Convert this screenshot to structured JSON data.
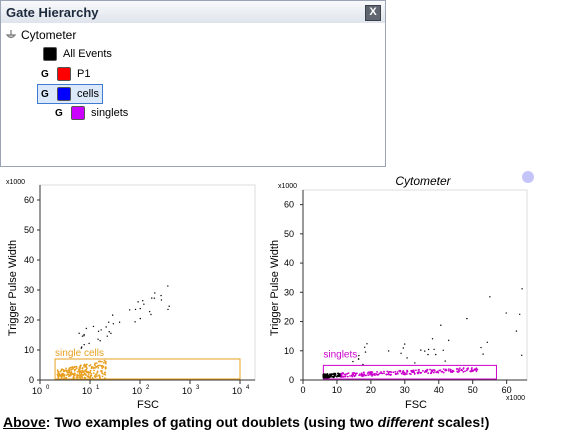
{
  "panel": {
    "title": "Gate Hierarchy",
    "close_glyph": "X",
    "root_label": "Cytometer",
    "items": [
      {
        "prefix": "",
        "label": "All Events",
        "color": "#000000"
      },
      {
        "prefix": "G",
        "label": "P1",
        "color": "#ff0000"
      },
      {
        "prefix": "G",
        "label": "cells",
        "color": "#0000ff",
        "selected": true
      },
      {
        "prefix": "G",
        "label": "singlets",
        "color": "#cc00ff"
      }
    ]
  },
  "chart_data": [
    {
      "type": "scatter",
      "title": "",
      "xlabel": "FSC",
      "ylabel": "Trigger Pulse Width",
      "y_multiplier": "x1000",
      "x_scale": "log",
      "x_ticks": [
        "10^0",
        "10^1",
        "10^2",
        "10^3",
        "10^4"
      ],
      "y_ticks": [
        "0",
        "10",
        "20",
        "30",
        "40",
        "50",
        "60"
      ],
      "ylim": [
        0,
        65
      ],
      "gate": {
        "label": "single cells",
        "color": "#e8a020",
        "x_range": [
          2,
          10000
        ],
        "y_range": [
          0,
          7
        ]
      },
      "points_color": [
        "#000000",
        "#e8a020"
      ]
    },
    {
      "type": "scatter",
      "title": "Cytometer",
      "xlabel": "FSC",
      "ylabel": "Trigger Pulse Width",
      "y_multiplier": "x1000",
      "x_multiplier": "x1000",
      "x_scale": "linear",
      "x_ticks": [
        "0",
        "10",
        "20",
        "30",
        "40",
        "50",
        "60"
      ],
      "y_ticks": [
        "0",
        "10",
        "20",
        "30",
        "40",
        "50",
        "60"
      ],
      "ylim": [
        0,
        65
      ],
      "xlim": [
        0,
        66
      ],
      "gate": {
        "label": "singlets",
        "color": "#cc00cc",
        "x_range": [
          6,
          57
        ],
        "y_range": [
          0,
          5
        ]
      },
      "points_color": [
        "#000000",
        "#cc00cc"
      ]
    }
  ],
  "caption": {
    "lead": "Above",
    "text1": ": Two examples of gating out doublets (using two ",
    "emph": "different",
    "text2": " scales!)"
  }
}
